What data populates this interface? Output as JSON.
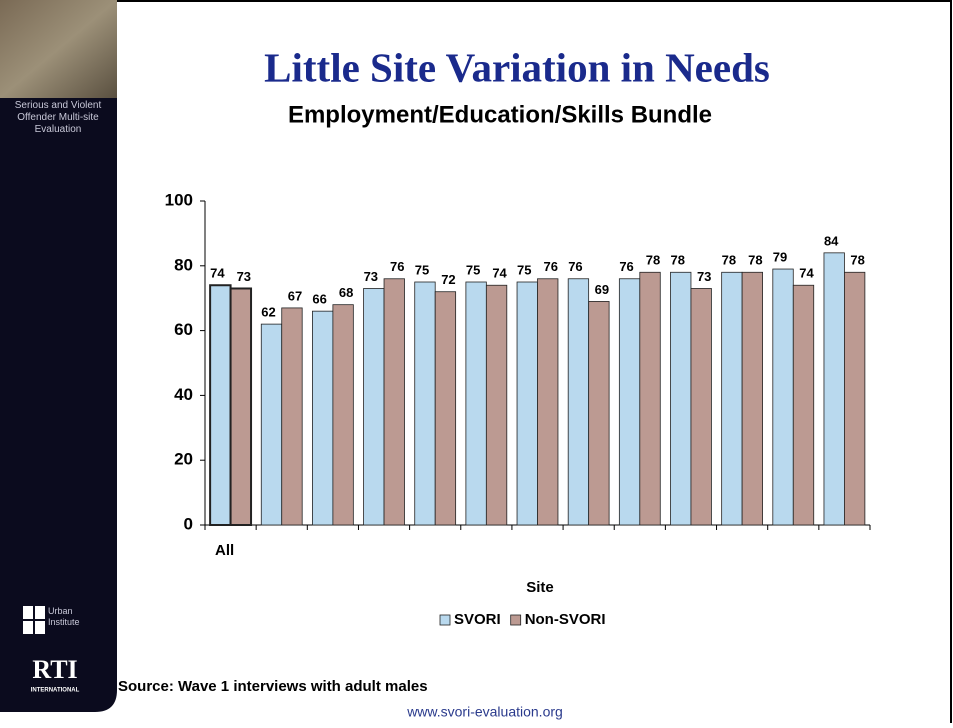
{
  "sidebar": {
    "project": "Serious and Violent Offender Multi-site Evaluation",
    "urban_logo": "Urban Institute",
    "rti_logo": "RTI",
    "rti_sub": "INTERNATIONAL"
  },
  "chart_data": {
    "type": "bar",
    "title": "Little Site Variation in Needs",
    "subtitle": "Employment/Education/Skills Bundle",
    "x_label": "Site",
    "categories": [
      "All",
      null,
      null,
      null,
      null,
      null,
      null,
      null,
      null,
      null,
      null,
      null,
      null
    ],
    "series": [
      {
        "name": "SVORI",
        "color": "#b9d9ee",
        "values": [
          74,
          62,
          66,
          73,
          75,
          75,
          75,
          76,
          76,
          78,
          78,
          79,
          84
        ]
      },
      {
        "name": "Non-SVORI",
        "color": "#bc9a92",
        "values": [
          73,
          67,
          68,
          76,
          72,
          74,
          76,
          69,
          78,
          73,
          78,
          74,
          78
        ]
      }
    ],
    "ylim": [
      0,
      100
    ],
    "yticks": [
      0,
      20,
      40,
      60,
      80,
      100
    ],
    "grid": false,
    "legend": "bottom",
    "source": "Source: Wave 1 interviews with adult males"
  },
  "footer": "www.svori-evaluation.org"
}
